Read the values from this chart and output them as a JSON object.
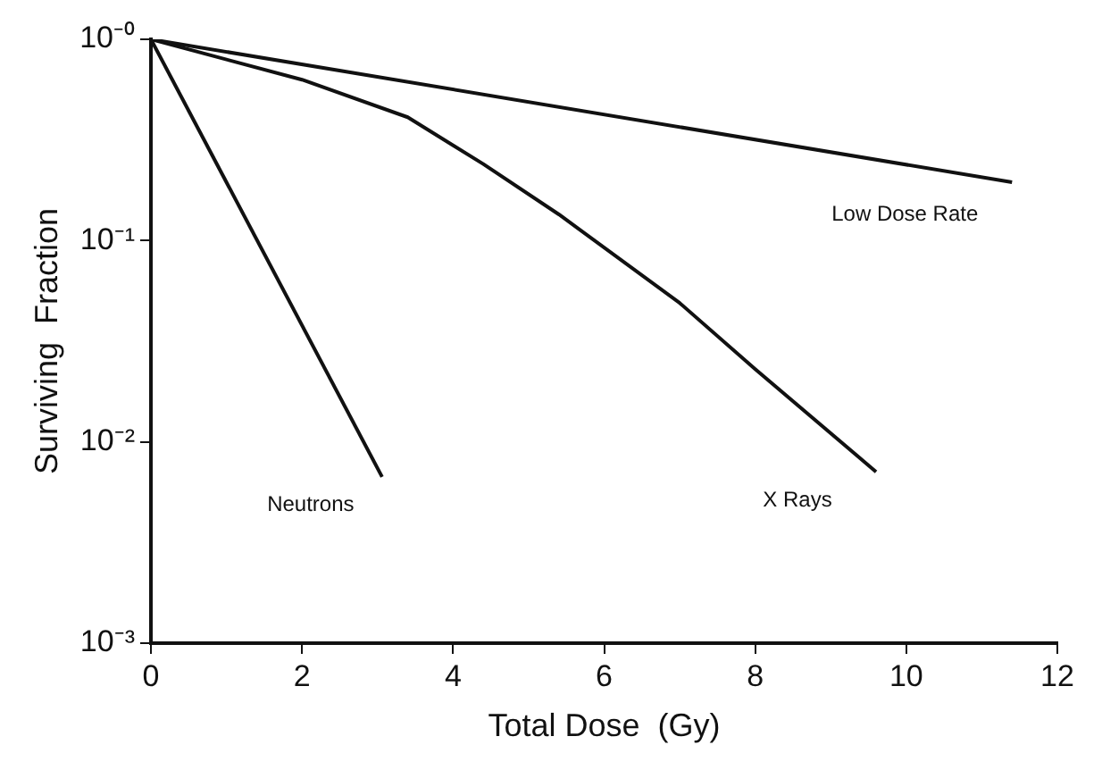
{
  "chart_data": {
    "type": "line",
    "xlabel": "Total Dose  (Gy)",
    "ylabel": "Surviving  Fraction",
    "log": "y",
    "grid": false,
    "legend": false,
    "marker": "none",
    "line_style": "solid",
    "xlim": [
      0,
      12
    ],
    "xticks": [
      0,
      2,
      4,
      6,
      8,
      10,
      12
    ],
    "ylim": [
      0.001,
      1
    ],
    "yticks": [
      {
        "value": 0.001,
        "label": "10⁻³"
      },
      {
        "value": 0.01,
        "label": "10⁻²"
      },
      {
        "value": 0.1,
        "label": "10⁻¹"
      },
      {
        "value": 1,
        "label": "10⁻⁰"
      }
    ],
    "series": [
      {
        "name": "Low Dose Rate",
        "color": "#111111",
        "x": [
          0,
          11.4
        ],
        "values": [
          1,
          0.195
        ]
      },
      {
        "name": "X Rays",
        "color": "#111111",
        "x": [
          0,
          2,
          3.4,
          4.4,
          5.4,
          7,
          8,
          9.6
        ],
        "values": [
          1,
          0.63,
          0.41,
          0.24,
          0.135,
          0.049,
          0.023,
          0.0071
        ]
      },
      {
        "name": "Neutrons",
        "color": "#111111",
        "x": [
          0,
          3.06
        ],
        "values": [
          1,
          0.0067
        ]
      }
    ]
  }
}
